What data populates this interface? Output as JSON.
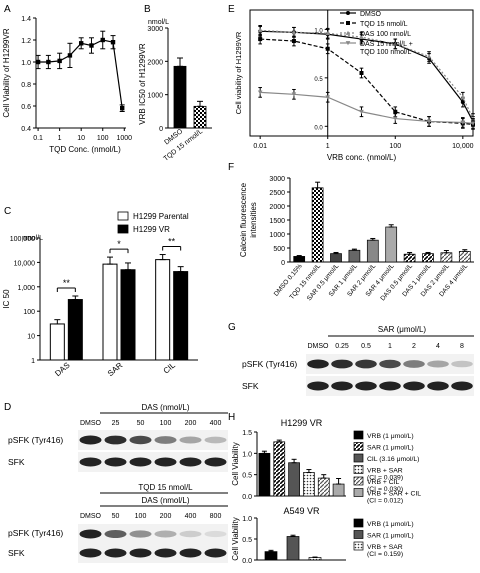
{
  "chart_data": [
    {
      "panel": "A",
      "type": "line",
      "ylabel": "Cell Viability of H1299VR",
      "xlabel": "TQD Conc. (nmol/L)",
      "xscale": "log",
      "xlim": [
        0.08,
        1200
      ],
      "ylim": [
        0.4,
        1.4
      ],
      "x_ticks": [
        "0.1",
        "1",
        "10",
        "100",
        "1000"
      ],
      "y_ticks": [
        "0.4",
        "0.6",
        "0.8",
        "1.0",
        "1.2",
        "1.4"
      ],
      "x": [
        0.1,
        0.3,
        1,
        3,
        10,
        30,
        100,
        300,
        800
      ],
      "y": [
        1.0,
        1.0,
        1.01,
        1.06,
        1.17,
        1.15,
        1.2,
        1.18,
        0.58
      ],
      "err": [
        0.06,
        0.06,
        0.07,
        0.11,
        0.05,
        0.07,
        0.08,
        0.06,
        0.03
      ]
    },
    {
      "panel": "B",
      "type": "bar",
      "ylabel": "VRB IC50 of H1299VR",
      "unit": "nmol/L",
      "ylim": [
        0,
        3000
      ],
      "y_ticks": [
        "0",
        "1000",
        "2000",
        "3000"
      ],
      "categories": [
        "DMSO",
        "TQD 15 nmol/L"
      ],
      "values": [
        1850,
        650
      ],
      "err": [
        250,
        150
      ]
    },
    {
      "panel": "C",
      "type": "bar",
      "ylabel": "IC 50",
      "unit": "nmol/L",
      "yscale": "log",
      "ylim": [
        1,
        100000
      ],
      "y_ticks": [
        "1",
        "10",
        "100",
        "1,000",
        "10,000",
        "100,000"
      ],
      "categories": [
        "DAS",
        "SAR",
        "CIL"
      ],
      "series": [
        {
          "name": "H1299 Parental",
          "values": [
            30,
            8500,
            13000
          ],
          "err_up": [
            15,
            8000,
            8000
          ]
        },
        {
          "name": "H1299 VR",
          "values": [
            300,
            5000,
            4200
          ],
          "err_up": [
            120,
            4500,
            2500
          ]
        }
      ],
      "significance": [
        "**",
        "*",
        "**"
      ]
    },
    {
      "panel": "D",
      "type": "blot",
      "header1": "DAS (nmol/L)",
      "lanes1": [
        "DMSO",
        "25",
        "50",
        "100",
        "200",
        "400"
      ],
      "rows": [
        "pSFK (Tyr416)",
        "SFK"
      ],
      "header2a": "TQD 15 nmol/L",
      "header2b": "DAS (nmol/L)",
      "lanes2": [
        "DMSO",
        "50",
        "100",
        "200",
        "400",
        "800"
      ]
    },
    {
      "panel": "E",
      "type": "line",
      "ylabel": "Cell viability of H1299VR",
      "xlabel": "VRB conc. (nmol/L)",
      "xscale": "log",
      "xlim": [
        0.005,
        20000
      ],
      "ylim": [
        -0.1,
        1.2
      ],
      "x_ticks": [
        "0.01",
        "1",
        "100",
        "10,000"
      ],
      "y_ticks": [
        "0.0",
        "0.5",
        "1.0"
      ],
      "series": [
        {
          "name": "DMSO",
          "x": [
            0.01,
            0.1,
            1,
            10,
            100,
            1000,
            10000,
            20000
          ],
          "y": [
            0.98,
            0.97,
            0.95,
            0.9,
            0.85,
            0.7,
            0.25,
            0.05
          ]
        },
        {
          "name": "TQD 15 nmol/L",
          "x": [
            0.01,
            0.1,
            1,
            10,
            100,
            1000,
            10000,
            20000
          ],
          "y": [
            0.9,
            0.88,
            0.8,
            0.55,
            0.15,
            0.05,
            0.03,
            0.02
          ]
        },
        {
          "name": "DAS 100 nmol/L",
          "x": [
            0.01,
            0.1,
            1,
            10,
            100,
            1000,
            10000,
            20000
          ],
          "y": [
            0.99,
            0.97,
            0.96,
            0.92,
            0.85,
            0.72,
            0.3,
            0.08
          ]
        },
        {
          "name": "DAS 15 nmol/L + TQD 100 nmol/L",
          "x": [
            0.01,
            0.1,
            1,
            10,
            100,
            1000,
            10000,
            20000
          ],
          "y": [
            0.35,
            0.33,
            0.3,
            0.15,
            0.08,
            0.05,
            0.04,
            0.03
          ]
        }
      ]
    },
    {
      "panel": "F",
      "type": "bar",
      "ylabel": "Calcein fluorescence intensities",
      "ylim": [
        0,
        3000
      ],
      "y_ticks": [
        "0",
        "500",
        "1000",
        "1500",
        "2000",
        "2500",
        "3000"
      ],
      "categories": [
        "DMSO 0.15%",
        "TQD 15 nmol/L",
        "SAR 0.5 μmol/L",
        "SAR 1 μmol/L",
        "SAR 2 μmol/L",
        "SAR 4 μmol/L",
        "DAS 0.5 μmol/L",
        "DAS 1 μmol/L",
        "DAS 2 μmol/L",
        "DAS 4 μmol/L"
      ],
      "values": [
        200,
        2650,
        300,
        420,
        780,
        1250,
        280,
        300,
        330,
        380
      ],
      "err": [
        30,
        200,
        40,
        40,
        60,
        80,
        60,
        40,
        80,
        60
      ]
    },
    {
      "panel": "G",
      "type": "blot",
      "header": "SAR (μmol/L)",
      "lanes": [
        "DMSO",
        "0.25",
        "0.5",
        "1",
        "2",
        "4",
        "8"
      ],
      "rows": [
        "pSFK (Tyr416)",
        "SFK"
      ]
    },
    {
      "panel": "H",
      "type": "bar",
      "ylabel": "Cell Viability",
      "title1": "H1299 VR",
      "title2": "A549 VR",
      "ylim": [
        0,
        1.5
      ],
      "top_y_ticks": [
        "0.0",
        "0.5",
        "1.0",
        "1.5"
      ],
      "bottom_y_ticks": [
        "0.0",
        "0.5",
        "1.0"
      ],
      "series_top": [
        {
          "name": "VRB (1 μmol/L)",
          "value": 1.0,
          "err": 0.05
        },
        {
          "name": "SAR (1 μmol/L)",
          "value": 1.27,
          "err": 0.04
        },
        {
          "name": "CIL (3.16 μmol/L)",
          "value": 0.78,
          "err": 0.08
        },
        {
          "name": "VRB + SAR\n(CI = 0.039)",
          "value": 0.55,
          "err": 0.07
        },
        {
          "name": "VRB + CIL\n(CI = 0.030)",
          "value": 0.42,
          "err": 0.08
        },
        {
          "name": "VRB + SAR + CIL\n(CI = 0.012)",
          "value": 0.28,
          "err": 0.13
        }
      ],
      "series_bottom": [
        {
          "name": "VRB (1 μmol/L)",
          "value": 0.2,
          "err": 0.03
        },
        {
          "name": "SAR (1 μmol/L)",
          "value": 0.56,
          "err": 0.03
        },
        {
          "name": "VRB + SAR\n(CI = 0.159)",
          "value": 0.06,
          "err": 0.01
        }
      ]
    }
  ]
}
